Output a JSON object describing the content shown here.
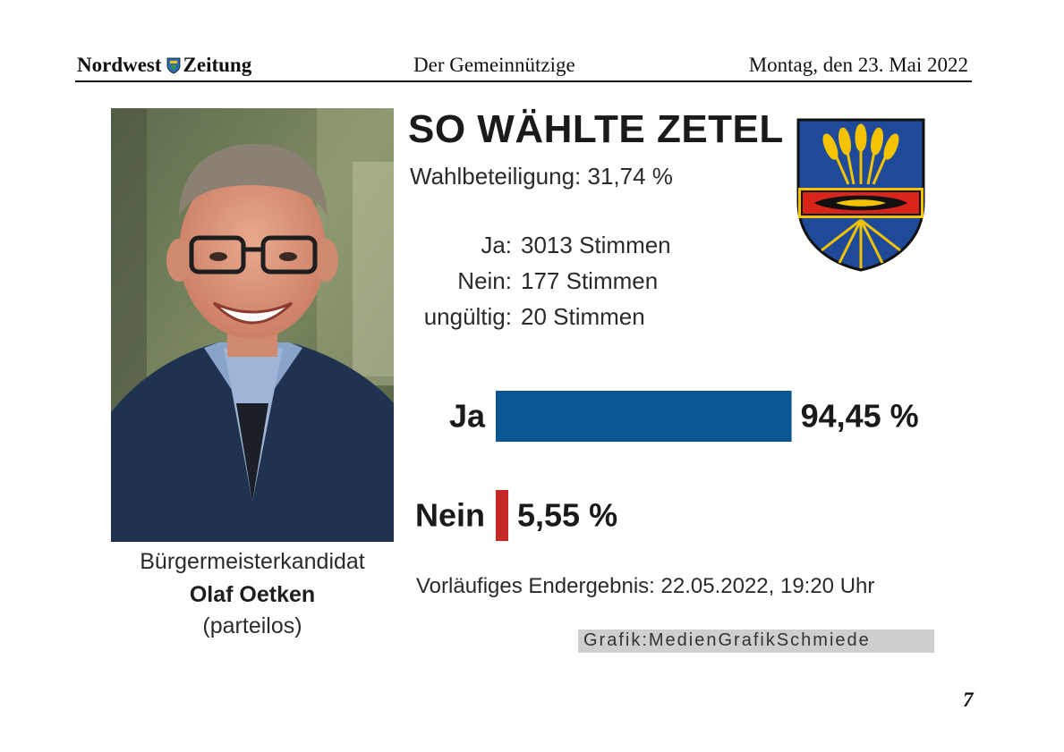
{
  "header": {
    "brand_part1": "Nordwest",
    "brand_part2": "Zeitung",
    "section": "Der Gemeinnützige",
    "date": "Montag, den 23. Mai 2022"
  },
  "headline": "SO WÄHLTE ZETEL",
  "turnout": "Wahlbeteiligung: 31,74 %",
  "counts": [
    {
      "label": "Ja:",
      "value": "3013 Stimmen"
    },
    {
      "label": "Nein:",
      "value": "177 Stimmen"
    },
    {
      "label": "ungültig:",
      "value": "20 Stimmen"
    }
  ],
  "candidate": {
    "role": "Bürgermeisterkandidat",
    "name": "Olaf Oetken",
    "party": "(parteilos)"
  },
  "chart_data": {
    "type": "bar",
    "orientation": "horizontal",
    "categories": [
      "Ja",
      "Nein"
    ],
    "values": [
      94.45,
      5.55
    ],
    "value_labels": [
      "94,45 %",
      "5,55 %"
    ],
    "colors": [
      "#0b5592",
      "#c62828"
    ],
    "xlim": [
      0,
      100
    ]
  },
  "preliminary_note": "Vorläufiges Endergebnis: 22.05.2022, 19:20 Uhr",
  "credit": "Grafik:MedienGrafikSchmiede",
  "page_number": "7"
}
